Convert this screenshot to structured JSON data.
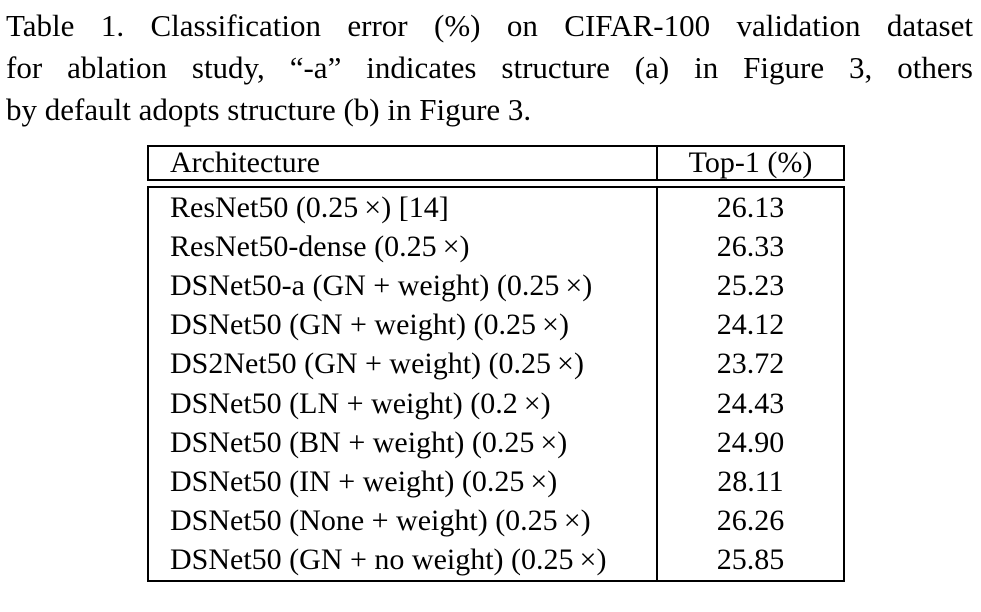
{
  "caption": {
    "lines": [
      "Table 1. Classification error (%) on CIFAR-100 validation dataset",
      "for ablation study, “-a” indicates structure (a) in Figure 3, others",
      "by default adopts structure (b) in Figure 3."
    ]
  },
  "table": {
    "columns": {
      "architecture": "Architecture",
      "top1": "Top-1 (%)"
    },
    "rows": [
      {
        "architecture": "ResNet50 (0.25 ×) [14]",
        "top1": "26.13"
      },
      {
        "architecture": "ResNet50-dense (0.25 ×)",
        "top1": "26.33"
      },
      {
        "architecture": "DSNet50-a (GN + weight) (0.25 ×)",
        "top1": "25.23"
      },
      {
        "architecture": "DSNet50 (GN + weight) (0.25 ×)",
        "top1": "24.12"
      },
      {
        "architecture": "DS2Net50 (GN + weight) (0.25 ×)",
        "top1": "23.72"
      },
      {
        "architecture": "DSNet50 (LN + weight) (0.2 ×)",
        "top1": "24.43"
      },
      {
        "architecture": "DSNet50 (BN + weight) (0.25 ×)",
        "top1": "24.90"
      },
      {
        "architecture": "DSNet50 (IN + weight) (0.25 ×)",
        "top1": "28.11"
      },
      {
        "architecture": "DSNet50 (None + weight) (0.25 ×)",
        "top1": "26.26"
      },
      {
        "architecture": "DSNet50 (GN + no weight) (0.25 ×)",
        "top1": "25.85"
      }
    ]
  },
  "colors": {
    "text": "#000000",
    "background": "#ffffff",
    "border": "#000000"
  }
}
